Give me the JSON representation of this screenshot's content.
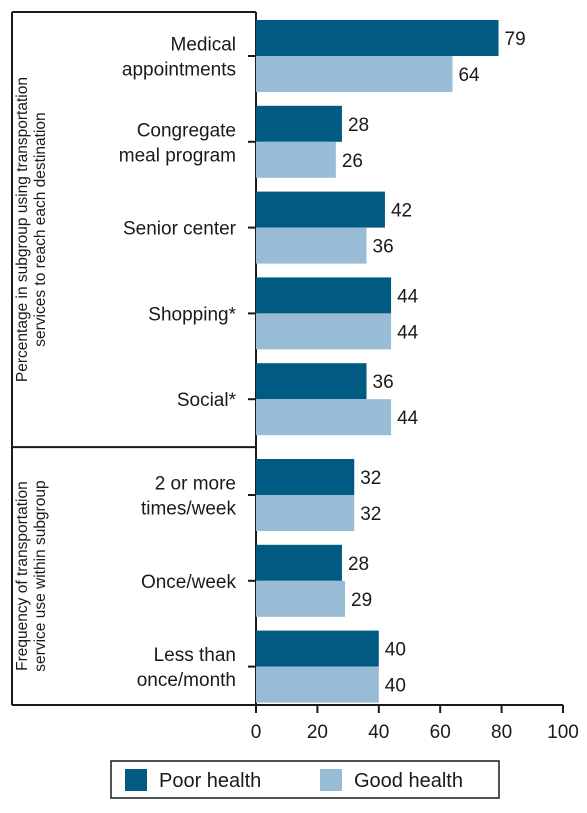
{
  "chart_data": {
    "type": "bar",
    "orientation": "horizontal",
    "groups": [
      {
        "label_lines": [
          "Percentage in subgroup using transportation",
          "services to reach each destination"
        ],
        "categories": [
          {
            "label_lines": [
              "Medical",
              "appointments"
            ],
            "values": [
              79,
              64
            ]
          },
          {
            "label_lines": [
              "Congregate",
              "meal program"
            ],
            "values": [
              28,
              26
            ]
          },
          {
            "label_lines": [
              "Senior center"
            ],
            "values": [
              42,
              36
            ]
          },
          {
            "label_lines": [
              "Shopping*"
            ],
            "values": [
              44,
              44
            ]
          },
          {
            "label_lines": [
              "Social*"
            ],
            "values": [
              36,
              44
            ]
          }
        ]
      },
      {
        "label_lines": [
          "Frequency of transportation",
          "service use within subgroup"
        ],
        "categories": [
          {
            "label_lines": [
              "2 or more",
              "times/week"
            ],
            "values": [
              32,
              32
            ]
          },
          {
            "label_lines": [
              "Once/week"
            ],
            "values": [
              28,
              29
            ]
          },
          {
            "label_lines": [
              "Less than",
              "once/month"
            ],
            "values": [
              40,
              40
            ]
          }
        ]
      }
    ],
    "series": [
      {
        "name": "Poor health",
        "color": "#005a82"
      },
      {
        "name": "Good health",
        "color": "#98bbd6"
      }
    ],
    "xlim": [
      0,
      100
    ],
    "xticks": [
      "0",
      "20",
      "40",
      "60",
      "80",
      "100"
    ],
    "legend_position": "bottom"
  }
}
